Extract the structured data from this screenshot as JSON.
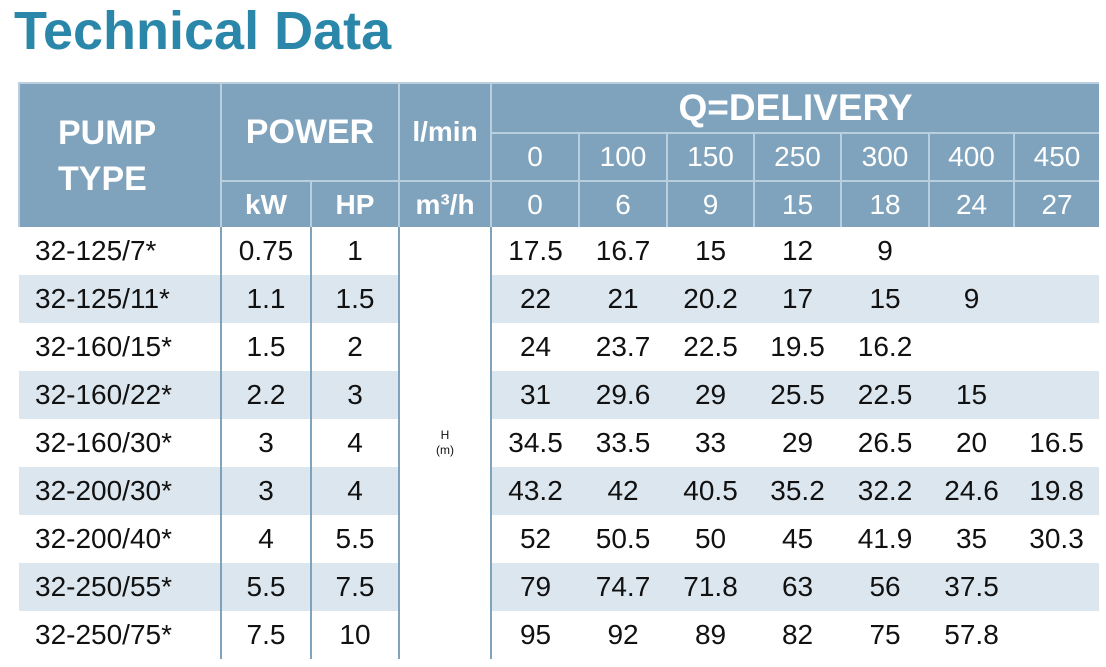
{
  "title": "Technical Data",
  "table": {
    "header": {
      "pump_type": [
        "PUMP",
        "TYPE"
      ],
      "power": "POWER",
      "kw": "kW",
      "hp": "HP",
      "lmin_unit": "l/min",
      "m3h_unit": "m³/h",
      "delivery": "Q=DELIVERY",
      "lmin": [
        0,
        100,
        150,
        250,
        300,
        400,
        450
      ],
      "m3h": [
        0,
        6,
        9,
        15,
        18,
        24,
        27
      ]
    },
    "head_unit": [
      "H",
      "(m)"
    ],
    "rows": [
      {
        "type": "32-125/7*",
        "kw": 0.75,
        "hp": 1,
        "h": [
          17.5,
          16.7,
          15,
          12,
          9,
          null,
          null
        ]
      },
      {
        "type": "32-125/11*",
        "kw": 1.1,
        "hp": 1.5,
        "h": [
          22,
          21,
          20.2,
          17,
          15,
          9,
          null
        ]
      },
      {
        "type": "32-160/15*",
        "kw": 1.5,
        "hp": 2,
        "h": [
          24,
          23.7,
          22.5,
          19.5,
          16.2,
          null,
          null
        ]
      },
      {
        "type": "32-160/22*",
        "kw": 2.2,
        "hp": 3,
        "h": [
          31,
          29.6,
          29,
          25.5,
          22.5,
          15,
          null
        ]
      },
      {
        "type": "32-160/30*",
        "kw": 3,
        "hp": 4,
        "h": [
          34.5,
          33.5,
          33,
          29,
          26.5,
          20,
          16.5
        ]
      },
      {
        "type": "32-200/30*",
        "kw": 3,
        "hp": 4,
        "h": [
          43.2,
          42,
          40.5,
          35.2,
          32.2,
          24.6,
          19.8
        ]
      },
      {
        "type": "32-200/40*",
        "kw": 4,
        "hp": 5.5,
        "h": [
          52,
          50.5,
          50,
          45,
          41.9,
          35,
          30.3
        ]
      },
      {
        "type": "32-250/55*",
        "kw": 5.5,
        "hp": 7.5,
        "h": [
          79,
          74.7,
          71.8,
          63,
          56,
          37.5,
          null
        ]
      },
      {
        "type": "32-250/75*",
        "kw": 7.5,
        "hp": 10,
        "h": [
          95,
          92,
          89,
          82,
          75,
          57.8,
          null
        ]
      }
    ]
  }
}
